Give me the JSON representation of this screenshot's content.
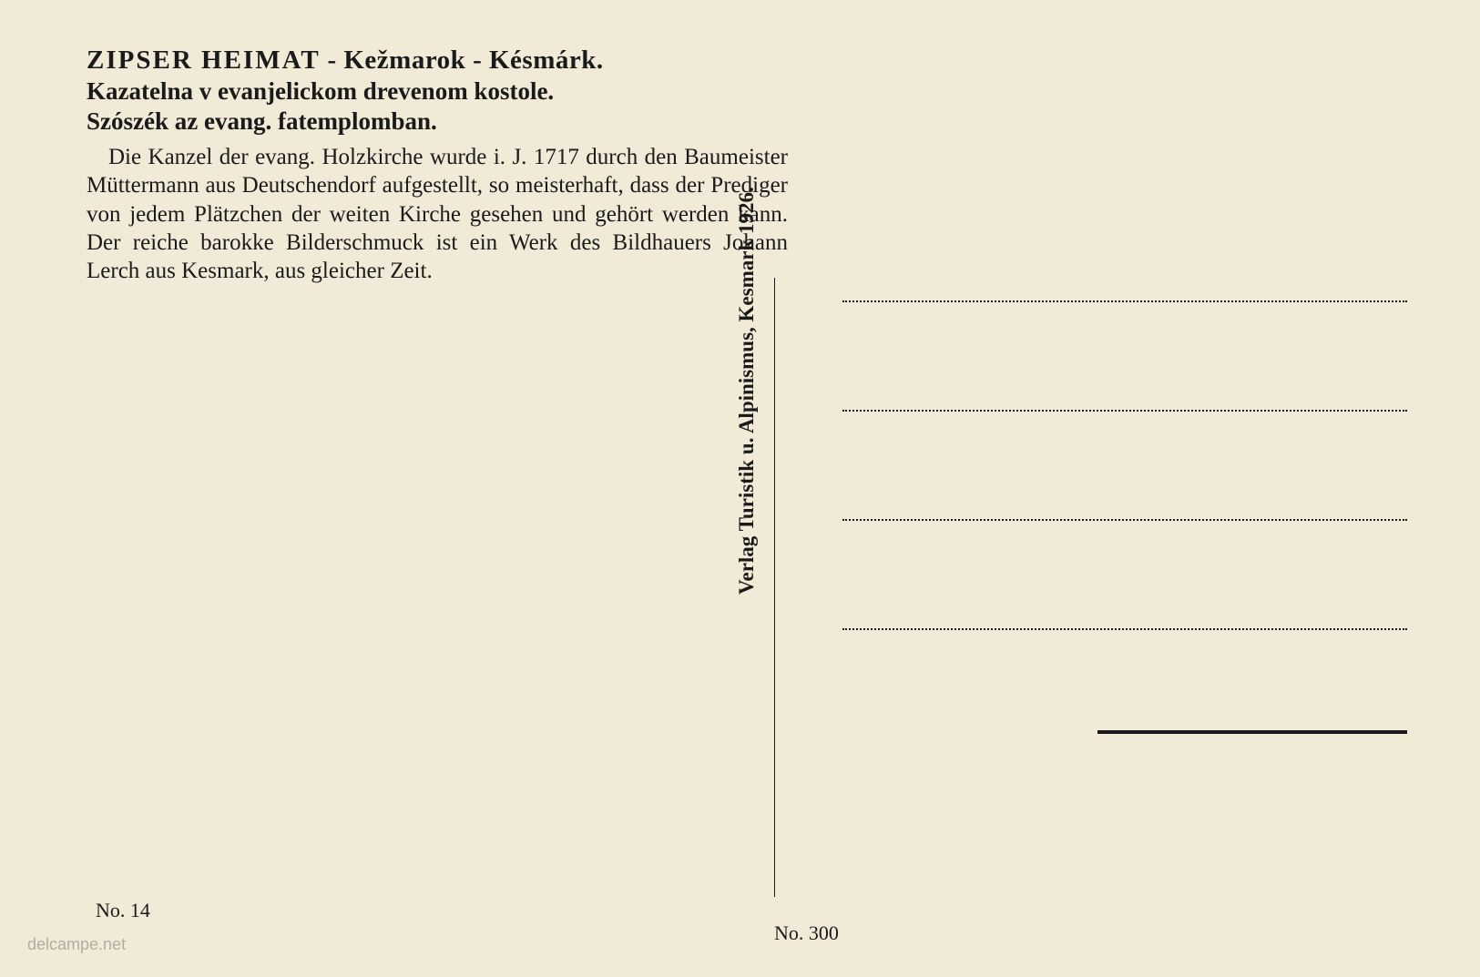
{
  "header": {
    "title_main": "ZIPSER HEIMAT",
    "title_sep1": " - ",
    "title_loc1": "Kežmarok",
    "title_sep2": " - ",
    "title_loc2": "Késmárk.",
    "subtitle1": "Kazatelna v evanjelickom drevenom kostole.",
    "subtitle2": "Szószék az evang. fatemplomban."
  },
  "description": {
    "text": "Die Kanzel der evang. Holzkirche wurde i. J. 1717 durch den Baumeister Müttermann aus Deutschendorf aufgestellt, so meisterhaft, dass der Prediger von jedem Plätzchen der weiten Kirche gesehen und gehört werden kann. Der reiche barokke Bilderschmuck ist ein Werk des Bildhauers Johann Lerch aus Kesmark, aus gleicher Zeit."
  },
  "publisher": "Verlag Turistik u. Alpinismus, Kesmark 1926.",
  "card_numbers": {
    "left": "No. 14",
    "right": "No. 300"
  },
  "watermark": "delcampe.net",
  "colors": {
    "background": "#f0ead6",
    "text": "#1a1a1a",
    "watermark": "rgba(60, 60, 60, 0.35)"
  }
}
